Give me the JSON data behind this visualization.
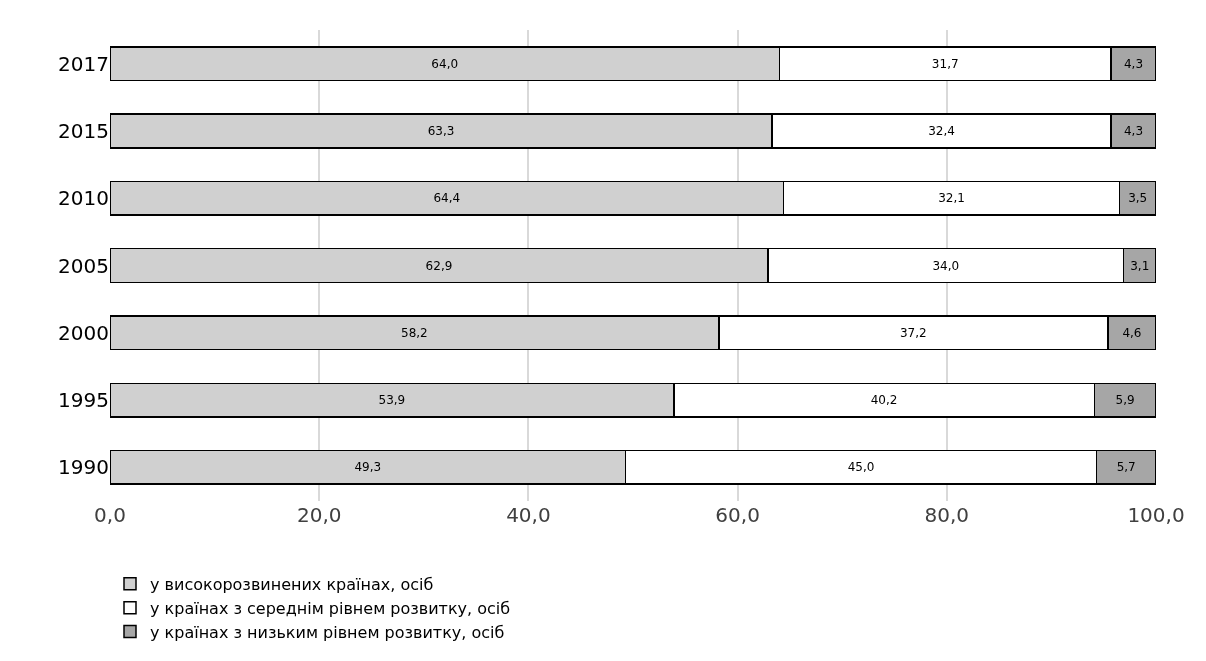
{
  "chart_data": {
    "type": "bar",
    "orientation": "horizontal",
    "stacked": true,
    "categories": [
      "2017",
      "2015",
      "2010",
      "2005",
      "2000",
      "1995",
      "1990"
    ],
    "series": [
      {
        "name": "у високорозвинених країнах, осіб",
        "color": "#d0d0d0",
        "values": [
          64.0,
          63.3,
          64.4,
          62.9,
          58.2,
          53.9,
          49.3
        ],
        "value_labels": [
          "64,0",
          "63,3",
          "64,4",
          "62,9",
          "58,2",
          "53,9",
          "49,3"
        ]
      },
      {
        "name": "у країнах з середнім рівнем розвитку, осіб",
        "color": "#ffffff",
        "values": [
          31.7,
          32.4,
          32.1,
          34.0,
          37.2,
          40.2,
          45.0
        ],
        "value_labels": [
          "31,7",
          "32,4",
          "32,1",
          "34,0",
          "37,2",
          "40,2",
          "45,0"
        ]
      },
      {
        "name": "у країнах з низьким рівнем розвитку, осіб",
        "color": "#a6a6a6",
        "values": [
          4.3,
          4.3,
          3.5,
          3.1,
          4.6,
          5.9,
          5.7
        ],
        "value_labels": [
          "4,3",
          "4,3",
          "3,5",
          "3,1",
          "4,6",
          "5,9",
          "5,7"
        ]
      }
    ],
    "xlim": [
      0,
      100
    ],
    "xticks": [
      {
        "value": 0,
        "label": "0,0"
      },
      {
        "value": 20,
        "label": "20,0"
      },
      {
        "value": 40,
        "label": "40,0"
      },
      {
        "value": 60,
        "label": "60,0"
      },
      {
        "value": 80,
        "label": "80,0"
      },
      {
        "value": 100,
        "label": "100,0"
      }
    ],
    "grid": "x",
    "legend": "bottom"
  }
}
